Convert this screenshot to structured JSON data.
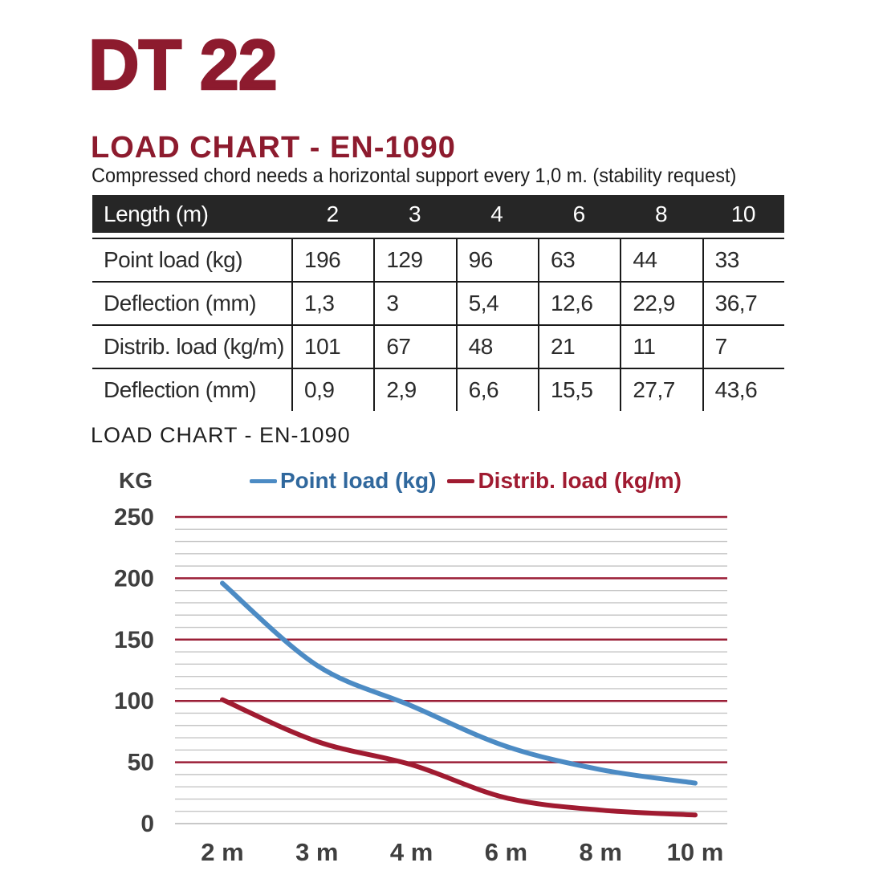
{
  "header": {
    "product_title": "DT 22",
    "section_title": "LOAD CHART - EN-1090",
    "note": "Compressed chord needs a horizontal support every 1,0 m. (stability request)"
  },
  "table": {
    "header": {
      "label": "Length (m)",
      "columns": [
        "2",
        "3",
        "4",
        "6",
        "8",
        "10"
      ]
    },
    "rows": [
      {
        "label": "Point load (kg)",
        "values": [
          "196",
          "129",
          "96",
          "63",
          "44",
          "33"
        ]
      },
      {
        "label": "Deflection (mm)",
        "values": [
          "1,3",
          "3",
          "5,4",
          "12,6",
          "22,9",
          "36,7"
        ]
      },
      {
        "label": "Distrib. load (kg/m)",
        "values": [
          "101",
          "67",
          "48",
          "21",
          "11",
          "7"
        ]
      },
      {
        "label": "Deflection (mm)",
        "values": [
          "0,9",
          "2,9",
          "6,6",
          "15,5",
          "27,7",
          "43,6"
        ]
      }
    ]
  },
  "chart_data": {
    "type": "line",
    "title": "LOAD CHART - EN-1090",
    "y_axis_label": "KG",
    "categories": [
      "2 m",
      "3 m",
      "4 m",
      "6 m",
      "8 m",
      "10 m"
    ],
    "series": [
      {
        "name": "Point load (kg)",
        "color": "#4C8BC4",
        "label_color": "#30689D",
        "values": [
          196,
          129,
          96,
          63,
          44,
          33
        ]
      },
      {
        "name": "Distrib. load (kg/m)",
        "color": "#A01B31",
        "label_color": "#A01B31",
        "values": [
          101,
          67,
          48,
          21,
          11,
          7
        ]
      }
    ],
    "ylim": [
      0,
      250
    ],
    "y_ticks": [
      0,
      50,
      100,
      150,
      200,
      250
    ],
    "y_major_step": 50,
    "y_minor_step": 10,
    "grid": {
      "major_color": "#9B1F37",
      "minor_color": "#C6C6C6",
      "zero_color": "#B5B5B5"
    },
    "tick_label_color": "#3F3F3F",
    "legend_position": "top"
  }
}
